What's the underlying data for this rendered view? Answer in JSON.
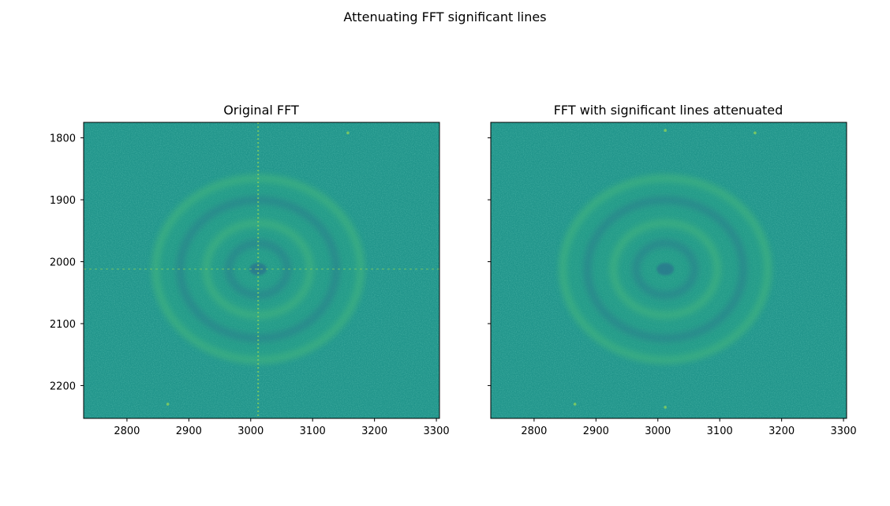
{
  "figure": {
    "suptitle": "Attenuating FFT significant lines"
  },
  "colors": {
    "background_low": "#26868e",
    "background_mid": "#21958b",
    "background_high": "#2aa884",
    "ring_bright": "#4ab97a",
    "ring_dark": "#2a788e",
    "line_bright": "#8bd15a",
    "axes_frame": "#000000"
  },
  "chart_data": [
    {
      "type": "heatmap",
      "title": "Original FFT",
      "xlabel": "",
      "ylabel": "",
      "xlim": [
        2730,
        3305
      ],
      "ylim": [
        2253,
        1775
      ],
      "xticks": [
        2800,
        2900,
        3000,
        3100,
        3200,
        3300
      ],
      "yticks": [
        1800,
        1900,
        2000,
        2100,
        2200
      ],
      "center": [
        3012,
        2012
      ],
      "ring_radii": [
        45,
        80,
        120,
        158
      ],
      "bright_lines": {
        "vertical_x": 3012,
        "horizontal_y": 2012
      },
      "spots": [
        [
          3157,
          1792
        ],
        [
          2866,
          2230
        ]
      ],
      "grid": false,
      "y_tick_labels_shown": true
    },
    {
      "type": "heatmap",
      "title": "FFT with significant lines attenuated",
      "xlabel": "",
      "ylabel": "",
      "xlim": [
        2730,
        3305
      ],
      "ylim": [
        2253,
        1775
      ],
      "xticks": [
        2800,
        2900,
        3000,
        3100,
        3200,
        3300
      ],
      "yticks": [
        1800,
        1900,
        2000,
        2100,
        2200
      ],
      "center": [
        3012,
        2012
      ],
      "ring_radii": [
        45,
        80,
        120,
        158
      ],
      "bright_lines": null,
      "spots": [
        [
          3157,
          1792
        ],
        [
          2866,
          2230
        ],
        [
          3012,
          2235
        ],
        [
          3012,
          1788
        ]
      ],
      "grid": false,
      "y_tick_labels_shown": false
    }
  ]
}
